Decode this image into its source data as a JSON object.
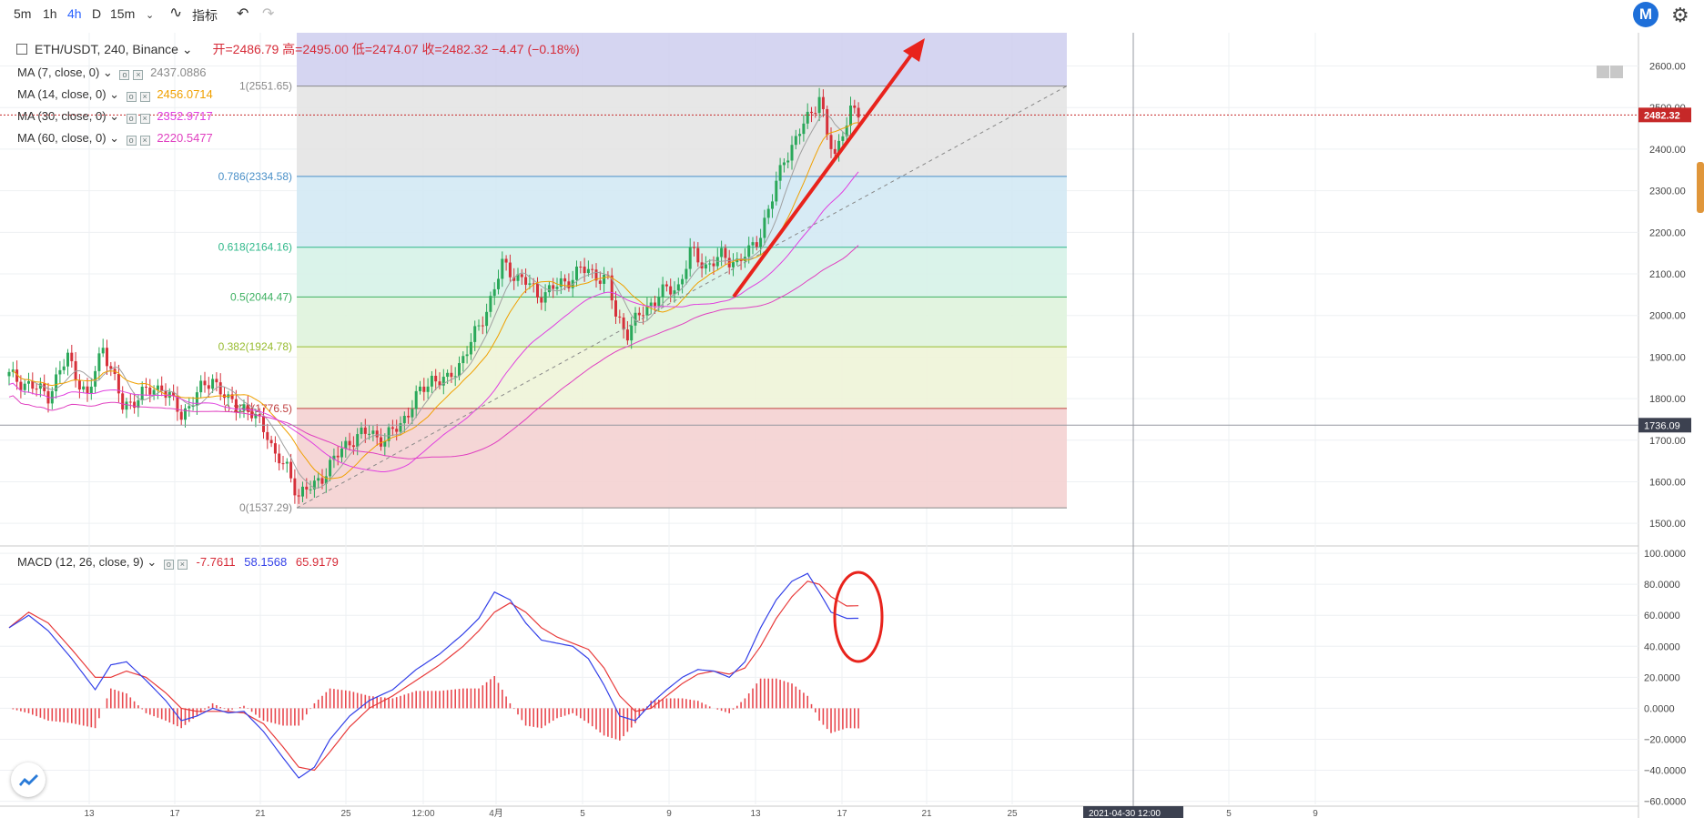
{
  "toolbar": {
    "intervals": [
      "5m",
      "1h",
      "4h",
      "D",
      "15m"
    ],
    "active_interval": "4h",
    "indicators_label": "指标",
    "icons": [
      "chevron-down-icon",
      "indicator-icon",
      "undo-icon",
      "redo-icon"
    ]
  },
  "legend": {
    "symbol": "ETH/USDT, 240, Binance",
    "ohlc": "开=2486.79  高=2495.00  低=2474.07  收=2482.32  −4.47 (−0.18%)",
    "ma": [
      {
        "label": "MA (7, close, 0)",
        "value": "2437.0886",
        "color": "#8a8a8a"
      },
      {
        "label": "MA (14, close, 0)",
        "value": "2456.0714",
        "color": "#f0a000"
      },
      {
        "label": "MA (30, close, 0)",
        "value": "2352.9717",
        "color": "#e040e0"
      },
      {
        "label": "MA (60, close, 0)",
        "value": "2220.5477",
        "color": "#e040c0"
      }
    ],
    "macd": {
      "label": "MACD (12, 26, close, 9)",
      "hist": "-7.7611",
      "macd": "58.1568",
      "signal": "65.9179"
    }
  },
  "colors": {
    "up": "#2aa85a",
    "down": "#d6303a",
    "accent": "#2962ff",
    "macd_line": "#3340e8",
    "signal_line": "#e83a3a"
  },
  "chart_data": [
    {
      "type": "candlestick",
      "title": "ETH/USDT, 240, Binance",
      "ylim": [
        1450,
        2680
      ],
      "y_ticks": [
        "2600.00",
        "2500.00",
        "2400.00",
        "2300.00",
        "2200.00",
        "2100.00",
        "2000.00",
        "1900.00",
        "1800.00",
        "1700.00",
        "1600.00",
        "1500.00"
      ],
      "x_ticks": [
        "13",
        "17",
        "21",
        "25",
        "12:00",
        "4月",
        "5",
        "9",
        "13",
        "17",
        "21",
        "25",
        "2021-04-30  12:00",
        "5",
        "9"
      ],
      "last_price": "2482.32",
      "crosshair_price": "1736.09",
      "crosshair_time": "2021-04-30  12:00",
      "closes_anchor": [
        [
          0,
          1855
        ],
        [
          10,
          1810
        ],
        [
          15,
          1900
        ],
        [
          20,
          1800
        ],
        [
          24,
          1930
        ],
        [
          29,
          1780
        ],
        [
          35,
          1815
        ],
        [
          39,
          1830
        ],
        [
          44,
          1760
        ],
        [
          48,
          1810
        ],
        [
          52,
          1850
        ],
        [
          56,
          1790
        ],
        [
          60,
          1780
        ],
        [
          62,
          1760
        ],
        [
          66,
          1720
        ],
        [
          68,
          1660
        ],
        [
          71,
          1630
        ],
        [
          74,
          1570
        ],
        [
          78,
          1590
        ],
        [
          82,
          1640
        ],
        [
          87,
          1700
        ],
        [
          92,
          1720
        ],
        [
          96,
          1700
        ],
        [
          100,
          1740
        ],
        [
          104,
          1800
        ],
        [
          108,
          1850
        ],
        [
          112,
          1840
        ],
        [
          116,
          1900
        ],
        [
          120,
          1970
        ],
        [
          123,
          2040
        ],
        [
          126,
          2120
        ],
        [
          129,
          2100
        ],
        [
          132,
          2080
        ],
        [
          135,
          2050
        ],
        [
          138,
          2060
        ],
        [
          142,
          2080
        ],
        [
          146,
          2110
        ],
        [
          150,
          2100
        ],
        [
          153,
          2080
        ],
        [
          155,
          2000
        ],
        [
          158,
          1960
        ],
        [
          162,
          2010
        ],
        [
          166,
          2050
        ],
        [
          171,
          2070
        ],
        [
          174,
          2150
        ],
        [
          178,
          2120
        ],
        [
          182,
          2140
        ],
        [
          186,
          2130
        ],
        [
          189,
          2150
        ],
        [
          192,
          2200
        ],
        [
          195,
          2280
        ],
        [
          198,
          2380
        ],
        [
          201,
          2420
        ],
        [
          203,
          2460
        ],
        [
          205,
          2490
        ],
        [
          207,
          2530
        ],
        [
          209,
          2430
        ],
        [
          211,
          2380
        ],
        [
          213,
          2450
        ],
        [
          215,
          2490
        ],
        [
          217,
          2482
        ]
      ],
      "fibonacci": [
        {
          "label": "1(2551.65)",
          "price": 2551.65,
          "color": "#888888",
          "band": "#d0d0f0"
        },
        {
          "label": "0.786(2334.58)",
          "price": 2334.58,
          "color": "#4a90c8",
          "band": "#e4e4e4"
        },
        {
          "label": "0.618(2164.16)",
          "price": 2164.16,
          "color": "#2fb88a",
          "band": "#d3e9f4"
        },
        {
          "label": "0.5(2044.47)",
          "price": 2044.47,
          "color": "#3cb060",
          "band": "#d6f2e8"
        },
        {
          "label": "0.382(1924.78)",
          "price": 1924.78,
          "color": "#98bc30",
          "band": "#dff3dd"
        },
        {
          "label": "0.236(1776.5)",
          "price": 1776.5,
          "color": "#c04040",
          "band": "#eef4d8"
        },
        {
          "label": "0(1537.29)",
          "price": 1537.29,
          "color": "#888888",
          "band": "#f4d2d2"
        }
      ],
      "fib_top_band_price": 2680
    },
    {
      "type": "macd",
      "title": "MACD (12, 26, close, 9)",
      "ylim": [
        -62,
        103
      ],
      "y_ticks": [
        "100.0000",
        "80.0000",
        "60.0000",
        "40.0000",
        "20.0000",
        "0.0000",
        "−20.0000",
        "−40.0000",
        "−60.0000"
      ],
      "macd_anchor": [
        [
          0,
          52
        ],
        [
          5,
          60
        ],
        [
          10,
          50
        ],
        [
          16,
          32
        ],
        [
          22,
          12
        ],
        [
          26,
          28
        ],
        [
          30,
          30
        ],
        [
          35,
          18
        ],
        [
          40,
          5
        ],
        [
          44,
          -8
        ],
        [
          48,
          -5
        ],
        [
          52,
          0
        ],
        [
          56,
          -3
        ],
        [
          60,
          -2
        ],
        [
          65,
          -15
        ],
        [
          70,
          -32
        ],
        [
          74,
          -45
        ],
        [
          78,
          -38
        ],
        [
          82,
          -20
        ],
        [
          87,
          -5
        ],
        [
          92,
          5
        ],
        [
          98,
          12
        ],
        [
          104,
          25
        ],
        [
          110,
          35
        ],
        [
          116,
          48
        ],
        [
          120,
          58
        ],
        [
          124,
          75
        ],
        [
          128,
          70
        ],
        [
          132,
          55
        ],
        [
          136,
          44
        ],
        [
          140,
          42
        ],
        [
          144,
          40
        ],
        [
          148,
          32
        ],
        [
          152,
          15
        ],
        [
          156,
          -5
        ],
        [
          160,
          -8
        ],
        [
          164,
          3
        ],
        [
          168,
          12
        ],
        [
          172,
          20
        ],
        [
          176,
          25
        ],
        [
          180,
          24
        ],
        [
          184,
          20
        ],
        [
          188,
          30
        ],
        [
          192,
          52
        ],
        [
          196,
          70
        ],
        [
          200,
          82
        ],
        [
          204,
          87
        ],
        [
          207,
          75
        ],
        [
          210,
          62
        ],
        [
          214,
          58
        ]
      ],
      "signal_anchor": [
        [
          0,
          52
        ],
        [
          5,
          62
        ],
        [
          10,
          55
        ],
        [
          16,
          38
        ],
        [
          22,
          20
        ],
        [
          26,
          20
        ],
        [
          30,
          24
        ],
        [
          35,
          20
        ],
        [
          40,
          10
        ],
        [
          44,
          0
        ],
        [
          48,
          -2
        ],
        [
          52,
          -2
        ],
        [
          56,
          -2
        ],
        [
          60,
          -3
        ],
        [
          65,
          -10
        ],
        [
          70,
          -25
        ],
        [
          74,
          -38
        ],
        [
          78,
          -40
        ],
        [
          82,
          -28
        ],
        [
          87,
          -12
        ],
        [
          92,
          0
        ],
        [
          98,
          8
        ],
        [
          104,
          18
        ],
        [
          110,
          28
        ],
        [
          116,
          40
        ],
        [
          120,
          50
        ],
        [
          124,
          62
        ],
        [
          128,
          68
        ],
        [
          132,
          62
        ],
        [
          136,
          52
        ],
        [
          140,
          46
        ],
        [
          144,
          42
        ],
        [
          148,
          38
        ],
        [
          152,
          26
        ],
        [
          156,
          8
        ],
        [
          160,
          -2
        ],
        [
          164,
          0
        ],
        [
          168,
          8
        ],
        [
          172,
          16
        ],
        [
          176,
          22
        ],
        [
          180,
          24
        ],
        [
          184,
          22
        ],
        [
          188,
          26
        ],
        [
          192,
          40
        ],
        [
          196,
          58
        ],
        [
          200,
          72
        ],
        [
          204,
          82
        ],
        [
          207,
          80
        ],
        [
          210,
          72
        ],
        [
          214,
          66
        ]
      ]
    }
  ]
}
